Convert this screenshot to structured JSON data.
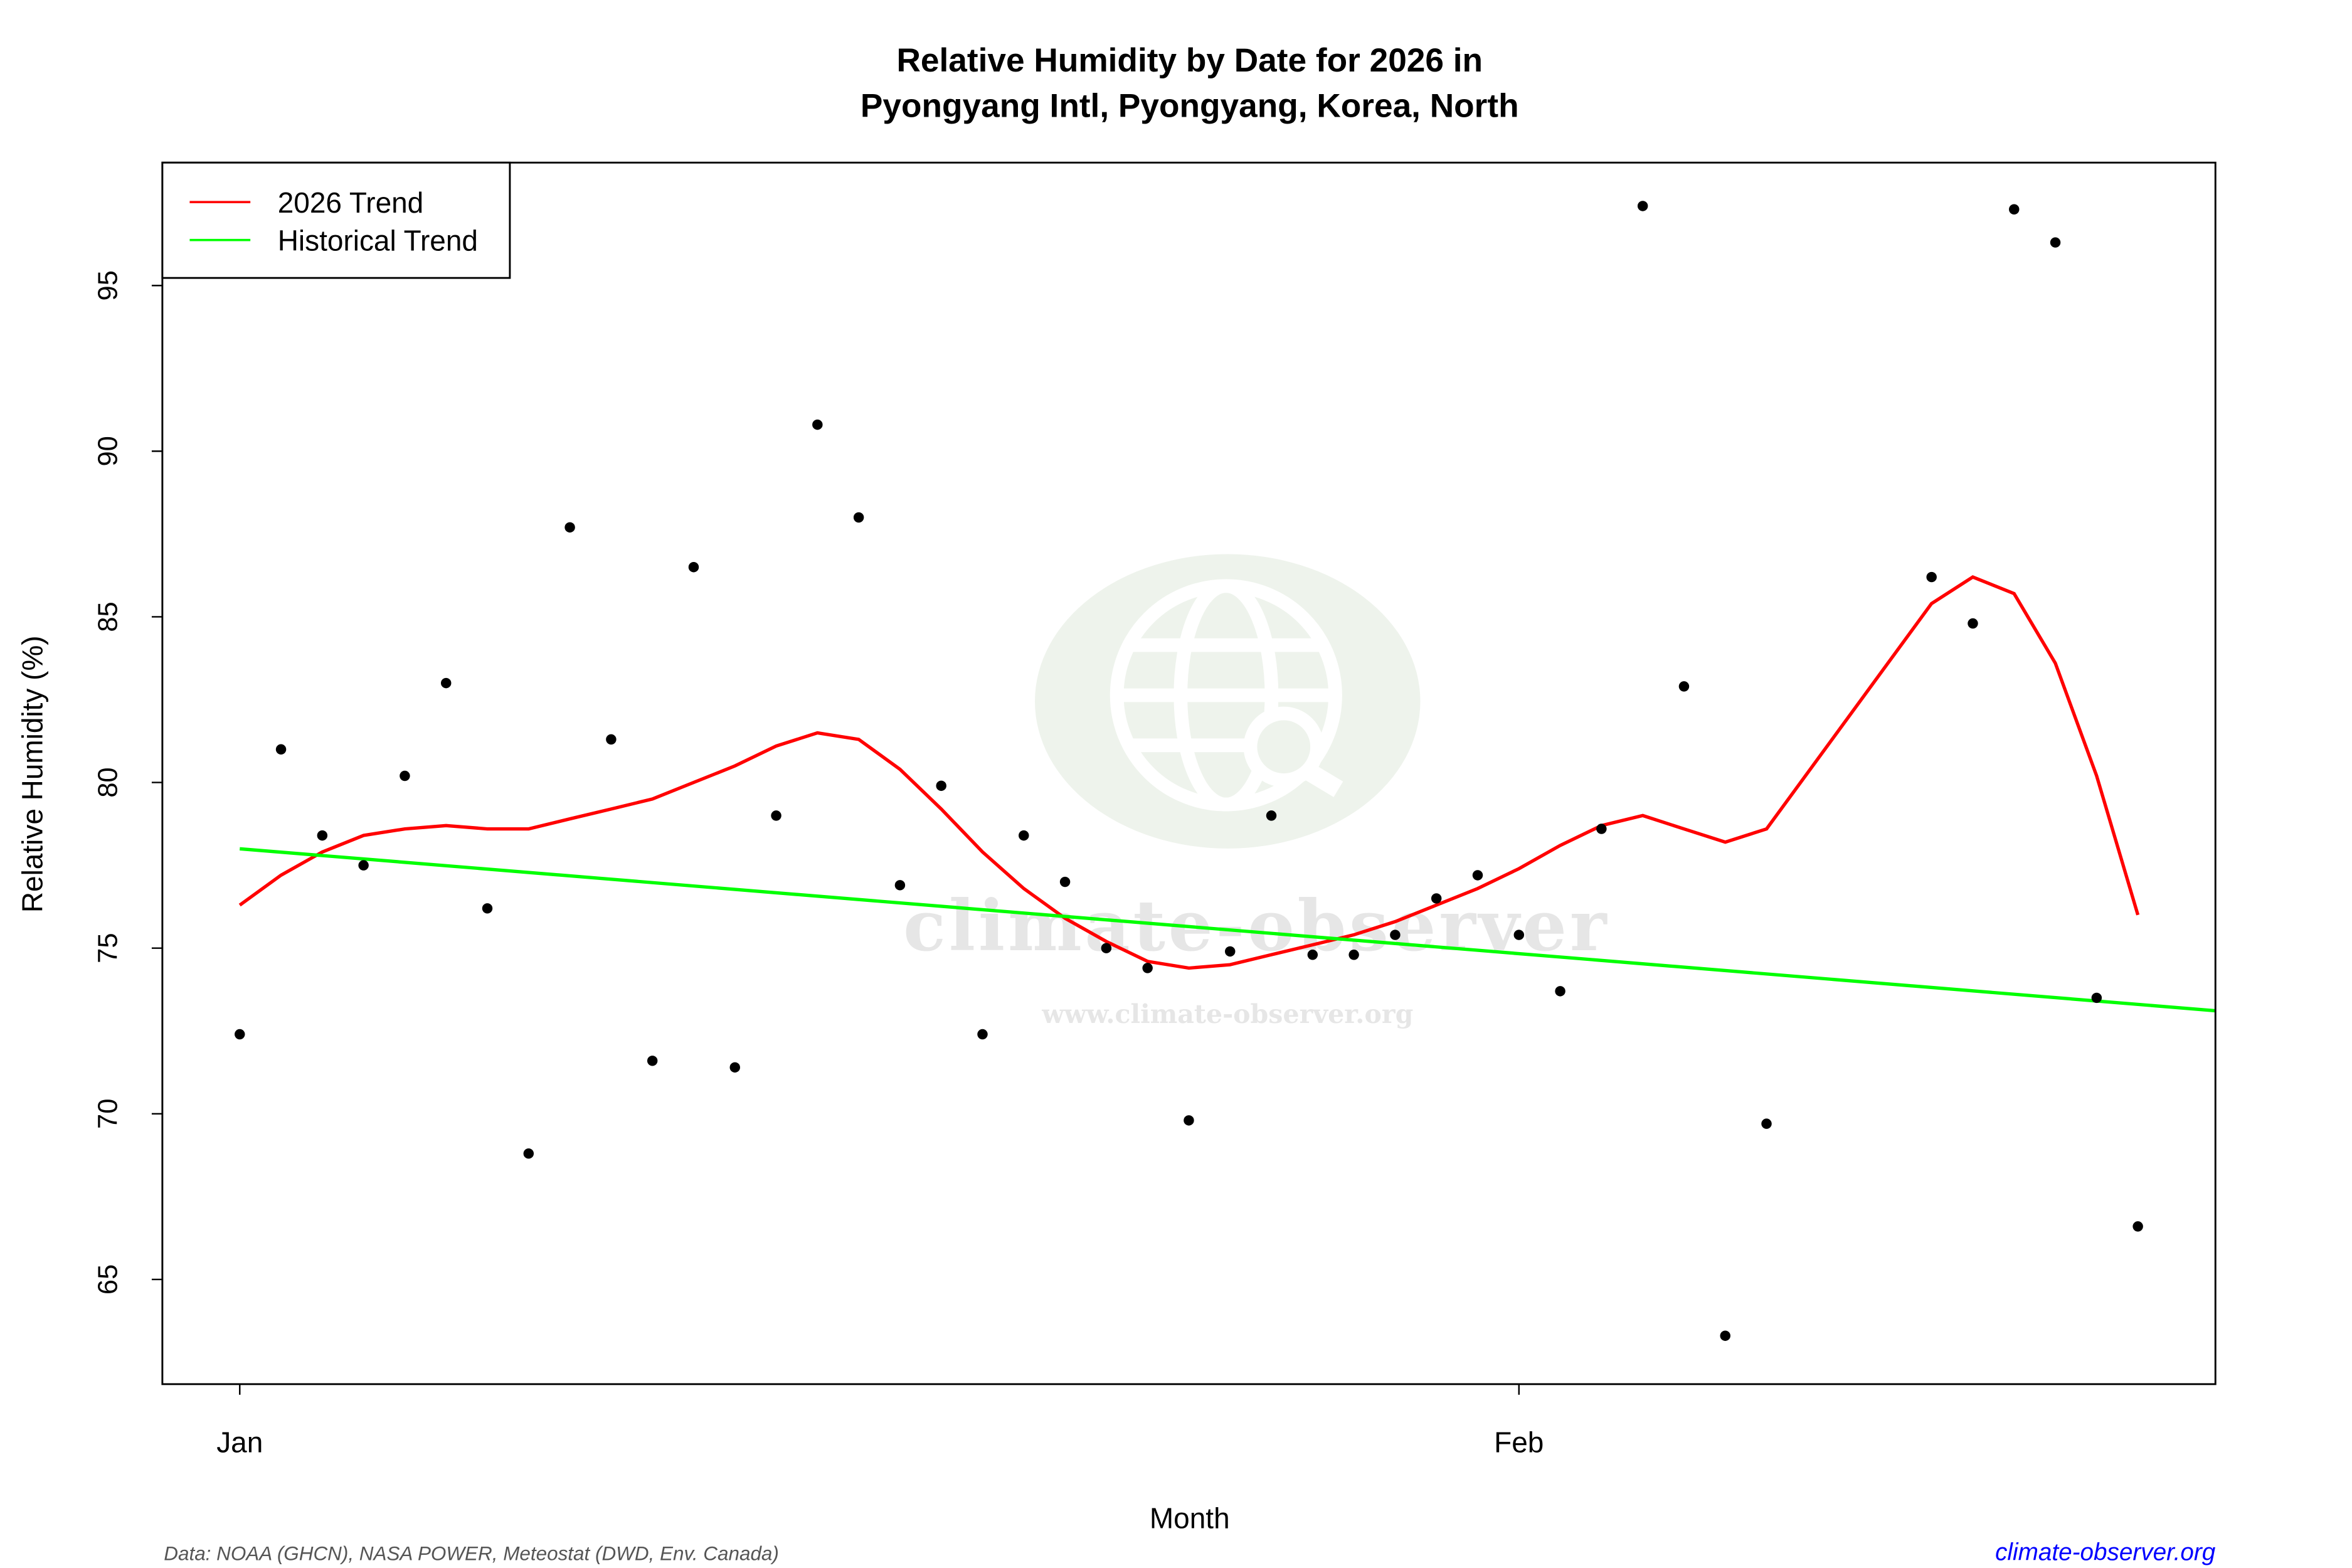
{
  "chart_data": {
    "type": "scatter",
    "title_line1": "Relative Humidity by Date for 2026 in",
    "title_line2": "Pyongyang Intl, Pyongyang, Korea, North",
    "xlabel": "Month",
    "ylabel": "Relative Humidity (%)",
    "x_ticks": [
      {
        "date": "2026-01-01",
        "label": "Jan"
      },
      {
        "date": "2026-02-01",
        "label": "Feb"
      }
    ],
    "y_ticks": [
      65,
      70,
      75,
      80,
      85,
      90,
      95
    ],
    "ylim": [
      61.5,
      98.8
    ],
    "xlim": [
      "2025-12-30",
      "2026-02-18"
    ],
    "grid": false,
    "legend_position": "top-left",
    "legend": [
      {
        "label": "2026 Trend",
        "color": "#ff0000"
      },
      {
        "label": "Historical Trend",
        "color": "#00ff00"
      }
    ],
    "points": {
      "color": "#000000",
      "data": [
        [
          "2026-01-01",
          72.4
        ],
        [
          "2026-01-02",
          81.0
        ],
        [
          "2026-01-03",
          78.4
        ],
        [
          "2026-01-04",
          77.5
        ],
        [
          "2026-01-05",
          80.2
        ],
        [
          "2026-01-06",
          83.0
        ],
        [
          "2026-01-07",
          76.2
        ],
        [
          "2026-01-08",
          68.8
        ],
        [
          "2026-01-09",
          87.7
        ],
        [
          "2026-01-10",
          81.3
        ],
        [
          "2026-01-11",
          71.6
        ],
        [
          "2026-01-12",
          86.5
        ],
        [
          "2026-01-13",
          71.4
        ],
        [
          "2026-01-14",
          79.0
        ],
        [
          "2026-01-15",
          90.8
        ],
        [
          "2026-01-16",
          88.0
        ],
        [
          "2026-01-17",
          76.9
        ],
        [
          "2026-01-18",
          79.9
        ],
        [
          "2026-01-19",
          72.4
        ],
        [
          "2026-01-20",
          78.4
        ],
        [
          "2026-01-21",
          77.0
        ],
        [
          "2026-01-22",
          75.0
        ],
        [
          "2026-01-23",
          74.4
        ],
        [
          "2026-01-24",
          69.8
        ],
        [
          "2026-01-25",
          74.9
        ],
        [
          "2026-01-26",
          79.0
        ],
        [
          "2026-01-27",
          74.8
        ],
        [
          "2026-01-28",
          74.8
        ],
        [
          "2026-01-29",
          75.4
        ],
        [
          "2026-01-30",
          76.5
        ],
        [
          "2026-01-31",
          77.2
        ],
        [
          "2026-02-01",
          75.4
        ],
        [
          "2026-02-02",
          73.7
        ],
        [
          "2026-02-03",
          78.6
        ],
        [
          "2026-02-04",
          97.4
        ],
        [
          "2026-02-05",
          82.9
        ],
        [
          "2026-02-06",
          63.3
        ],
        [
          "2026-02-07",
          69.7
        ],
        [
          "2026-02-11",
          86.2
        ],
        [
          "2026-02-12",
          84.8
        ],
        [
          "2026-02-13",
          97.3
        ],
        [
          "2026-02-14",
          96.3
        ],
        [
          "2026-02-15",
          73.5
        ],
        [
          "2026-02-16",
          66.6
        ]
      ]
    },
    "series": [
      {
        "name": "2026 Trend",
        "color": "#ff0000",
        "data": [
          [
            "2026-01-01",
            76.3
          ],
          [
            "2026-01-02",
            77.2
          ],
          [
            "2026-01-03",
            77.9
          ],
          [
            "2026-01-04",
            78.4
          ],
          [
            "2026-01-05",
            78.6
          ],
          [
            "2026-01-06",
            78.7
          ],
          [
            "2026-01-07",
            78.6
          ],
          [
            "2026-01-08",
            78.6
          ],
          [
            "2026-01-09",
            78.9
          ],
          [
            "2026-01-10",
            79.2
          ],
          [
            "2026-01-11",
            79.5
          ],
          [
            "2026-01-12",
            80.0
          ],
          [
            "2026-01-13",
            80.5
          ],
          [
            "2026-01-14",
            81.1
          ],
          [
            "2026-01-15",
            81.5
          ],
          [
            "2026-01-16",
            81.3
          ],
          [
            "2026-01-17",
            80.4
          ],
          [
            "2026-01-18",
            79.2
          ],
          [
            "2026-01-19",
            77.9
          ],
          [
            "2026-01-20",
            76.8
          ],
          [
            "2026-01-21",
            75.9
          ],
          [
            "2026-01-22",
            75.2
          ],
          [
            "2026-01-23",
            74.6
          ],
          [
            "2026-01-24",
            74.4
          ],
          [
            "2026-01-25",
            74.5
          ],
          [
            "2026-01-26",
            74.8
          ],
          [
            "2026-01-27",
            75.1
          ],
          [
            "2026-01-28",
            75.4
          ],
          [
            "2026-01-29",
            75.8
          ],
          [
            "2026-01-30",
            76.3
          ],
          [
            "2026-01-31",
            76.8
          ],
          [
            "2026-02-01",
            77.4
          ],
          [
            "2026-02-02",
            78.1
          ],
          [
            "2026-02-03",
            78.7
          ],
          [
            "2026-02-04",
            79.0
          ],
          [
            "2026-02-05",
            78.6
          ],
          [
            "2026-02-06",
            78.2
          ],
          [
            "2026-02-07",
            78.6
          ],
          [
            "2026-02-11",
            85.4
          ],
          [
            "2026-02-12",
            86.2
          ],
          [
            "2026-02-13",
            85.7
          ],
          [
            "2026-02-14",
            83.6
          ],
          [
            "2026-02-15",
            80.2
          ],
          [
            "2026-02-16",
            76.0
          ]
        ]
      },
      {
        "name": "Historical Trend",
        "color": "#00ff00",
        "data": [
          [
            "2026-01-01",
            78.0
          ],
          [
            "2026-02-18",
            73.1
          ]
        ]
      }
    ],
    "watermark": {
      "name": "climate-observer",
      "url": "www.climate-observer.org"
    }
  },
  "footer": {
    "source": "Data: NOAA (GHCN), NASA POWER, Meteostat (DWD, Env. Canada)",
    "site": "climate-observer.org",
    "site_color": "#0000ff"
  }
}
